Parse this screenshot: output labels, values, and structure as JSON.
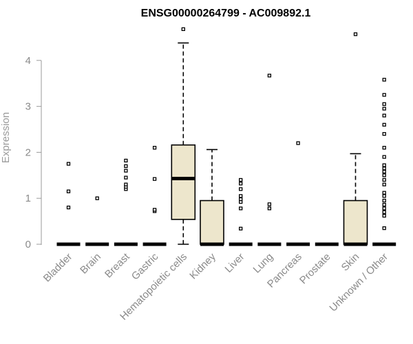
{
  "chart_data": {
    "type": "boxplot",
    "title": "ENSG00000264799 - AC009892.1",
    "xlabel": "",
    "ylabel": "Expression",
    "ylim": [
      0,
      4.75
    ],
    "yticks": [
      0,
      1,
      2,
      3,
      4
    ],
    "ytick_labels": [
      "0",
      "1",
      "2",
      "3",
      "4"
    ],
    "grid": false,
    "legend": "none",
    "colors": {
      "box_fill": "#ede6cc",
      "stroke": "#000000",
      "axis": "#9a9a9a"
    },
    "categories": [
      "Bladder",
      "Brain",
      "Breast",
      "Gastric",
      "Hematopoietic cells",
      "Kidney",
      "Liver",
      "Lung",
      "Pancreas",
      "Prostate",
      "Skin",
      "Unknown / Other"
    ],
    "boxes": [
      {
        "category": "Bladder",
        "min": 0,
        "q1": 0,
        "median": 0,
        "q3": 0,
        "max": 0,
        "outliers": [
          0.8,
          1.15,
          1.75
        ]
      },
      {
        "category": "Brain",
        "min": 0,
        "q1": 0,
        "median": 0,
        "q3": 0,
        "max": 0,
        "outliers": [
          1.0
        ]
      },
      {
        "category": "Breast",
        "min": 0,
        "q1": 0,
        "median": 0,
        "q3": 0,
        "max": 0,
        "outliers": [
          1.2,
          1.25,
          1.3,
          1.45,
          1.6,
          1.7,
          1.82
        ]
      },
      {
        "category": "Gastric",
        "min": 0,
        "q1": 0,
        "median": 0,
        "q3": 0,
        "max": 0,
        "outliers": [
          0.72,
          0.75,
          1.42,
          2.1
        ]
      },
      {
        "category": "Hematopoietic cells",
        "min": 0,
        "q1": 0.54,
        "median": 1.43,
        "q3": 2.16,
        "max": 4.38,
        "outliers": [
          4.68
        ]
      },
      {
        "category": "Kidney",
        "min": 0,
        "q1": 0,
        "median": 0,
        "q3": 0.95,
        "max": 2.06,
        "outliers": []
      },
      {
        "category": "Liver",
        "min": 0,
        "q1": 0,
        "median": 0,
        "q3": 0,
        "max": 0,
        "outliers": [
          0.34,
          0.78,
          0.92,
          0.98,
          1.05,
          1.2,
          1.32,
          1.4
        ]
      },
      {
        "category": "Lung",
        "min": 0,
        "q1": 0,
        "median": 0,
        "q3": 0,
        "max": 0,
        "outliers": [
          0.78,
          0.87,
          3.67
        ]
      },
      {
        "category": "Pancreas",
        "min": 0,
        "q1": 0,
        "median": 0,
        "q3": 0,
        "max": 0,
        "outliers": [
          2.2
        ]
      },
      {
        "category": "Prostate",
        "min": 0,
        "q1": 0,
        "median": 0,
        "q3": 0,
        "max": 0,
        "outliers": []
      },
      {
        "category": "Skin",
        "min": 0,
        "q1": 0,
        "median": 0,
        "q3": 0.95,
        "max": 1.97,
        "outliers": [
          4.57
        ]
      },
      {
        "category": "Unknown / Other",
        "min": 0,
        "q1": 0,
        "median": 0,
        "q3": 0,
        "max": 0,
        "outliers": [
          0.35,
          0.62,
          0.7,
          0.78,
          0.86,
          0.95,
          1.05,
          1.12,
          1.3,
          1.4,
          1.5,
          1.58,
          1.65,
          1.72,
          1.9,
          2.1,
          2.4,
          2.6,
          2.8,
          2.95,
          3.05,
          3.25,
          3.58
        ]
      }
    ]
  }
}
